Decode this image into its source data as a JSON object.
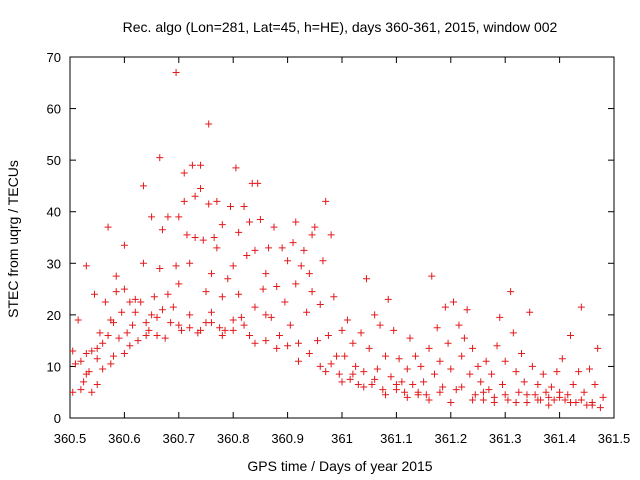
{
  "chart_data": {
    "type": "scatter",
    "title": "Rec. algo (Lon=281, Lat=45, h=HE), days 360-361, 2015, window 002",
    "xlabel": "GPS time / Days of year 2015",
    "ylabel": "STEC from uqrg / TECUs",
    "xlim": [
      360.5,
      361.5
    ],
    "ylim": [
      0,
      70
    ],
    "xticks": [
      "360.5",
      "360.6",
      "360.7",
      "360.8",
      "360.9",
      "361",
      "361.1",
      "361.2",
      "361.3",
      "361.4",
      "361.5"
    ],
    "yticks": [
      "0",
      "10",
      "20",
      "30",
      "40",
      "50",
      "60",
      "70"
    ],
    "grid": false,
    "marker": "+",
    "color": "#e31a1c",
    "points": [
      [
        360.505,
        13.0
      ],
      [
        360.505,
        5.0
      ],
      [
        360.51,
        10.5
      ],
      [
        360.515,
        19.0
      ],
      [
        360.52,
        11.0
      ],
      [
        360.52,
        5.5
      ],
      [
        360.525,
        7.0
      ],
      [
        360.53,
        12.5
      ],
      [
        360.53,
        29.5
      ],
      [
        360.535,
        9.0
      ],
      [
        360.54,
        5.0
      ],
      [
        360.54,
        13.0
      ],
      [
        360.545,
        24.0
      ],
      [
        360.55,
        6.5
      ],
      [
        360.55,
        11.5
      ],
      [
        360.555,
        16.5
      ],
      [
        360.56,
        9.5
      ],
      [
        360.56,
        14.5
      ],
      [
        360.565,
        22.5
      ],
      [
        360.57,
        16.0
      ],
      [
        360.57,
        37.0
      ],
      [
        360.575,
        10.5
      ],
      [
        360.58,
        12.0
      ],
      [
        360.58,
        18.5
      ],
      [
        360.585,
        27.5
      ],
      [
        360.585,
        24.5
      ],
      [
        360.59,
        15.5
      ],
      [
        360.595,
        20.5
      ],
      [
        360.6,
        12.5
      ],
      [
        360.6,
        33.5
      ],
      [
        360.605,
        16.5
      ],
      [
        360.61,
        22.5
      ],
      [
        360.61,
        14.0
      ],
      [
        360.615,
        18.0
      ],
      [
        360.62,
        23.0
      ],
      [
        360.625,
        15.0
      ],
      [
        360.63,
        22.5
      ],
      [
        360.635,
        45.0
      ],
      [
        360.635,
        30.0
      ],
      [
        360.64,
        18.5
      ],
      [
        360.645,
        17.0
      ],
      [
        360.65,
        39.0
      ],
      [
        360.65,
        20.0
      ],
      [
        360.655,
        23.5
      ],
      [
        360.66,
        16.0
      ],
      [
        360.665,
        50.5
      ],
      [
        360.665,
        29.0
      ],
      [
        360.67,
        36.5
      ],
      [
        360.67,
        21.0
      ],
      [
        360.675,
        15.5
      ],
      [
        360.68,
        39.0
      ],
      [
        360.685,
        18.5
      ],
      [
        360.69,
        21.5
      ],
      [
        360.695,
        67.0
      ],
      [
        360.695,
        29.5
      ],
      [
        360.7,
        39.0
      ],
      [
        360.7,
        26.0
      ],
      [
        360.705,
        17.0
      ],
      [
        360.71,
        47.5
      ],
      [
        360.71,
        42.0
      ],
      [
        360.715,
        35.5
      ],
      [
        360.72,
        30.0
      ],
      [
        360.72,
        20.0
      ],
      [
        360.725,
        49.0
      ],
      [
        360.73,
        43.0
      ],
      [
        360.73,
        35.0
      ],
      [
        360.735,
        16.5
      ],
      [
        360.74,
        49.0
      ],
      [
        360.74,
        44.5
      ],
      [
        360.745,
        34.5
      ],
      [
        360.75,
        24.5
      ],
      [
        360.75,
        18.5
      ],
      [
        360.755,
        57.0
      ],
      [
        360.755,
        41.5
      ],
      [
        360.76,
        28.0
      ],
      [
        360.76,
        20.5
      ],
      [
        360.765,
        35.0
      ],
      [
        360.77,
        42.0
      ],
      [
        360.77,
        33.0
      ],
      [
        360.775,
        17.5
      ],
      [
        360.78,
        23.5
      ],
      [
        360.78,
        37.5
      ],
      [
        360.785,
        17.0
      ],
      [
        360.79,
        27.0
      ],
      [
        360.795,
        41.0
      ],
      [
        360.8,
        29.5
      ],
      [
        360.8,
        19.0
      ],
      [
        360.805,
        48.5
      ],
      [
        360.81,
        36.0
      ],
      [
        360.81,
        24.0
      ],
      [
        360.815,
        19.5
      ],
      [
        360.82,
        41.0
      ],
      [
        360.825,
        31.5
      ],
      [
        360.83,
        38.0
      ],
      [
        360.83,
        16.0
      ],
      [
        360.835,
        45.5
      ],
      [
        360.84,
        32.5
      ],
      [
        360.84,
        21.5
      ],
      [
        360.845,
        45.5
      ],
      [
        360.85,
        38.5
      ],
      [
        360.855,
        25.0
      ],
      [
        360.86,
        28.0
      ],
      [
        360.86,
        20.0
      ],
      [
        360.865,
        33.0
      ],
      [
        360.87,
        19.5
      ],
      [
        360.875,
        37.0
      ],
      [
        360.88,
        25.5
      ],
      [
        360.885,
        16.0
      ],
      [
        360.89,
        33.0
      ],
      [
        360.895,
        22.5
      ],
      [
        360.9,
        30.5
      ],
      [
        360.905,
        18.0
      ],
      [
        360.91,
        34.0
      ],
      [
        360.915,
        38.0
      ],
      [
        360.915,
        26.0
      ],
      [
        360.92,
        14.5
      ],
      [
        360.925,
        29.5
      ],
      [
        360.93,
        32.5
      ],
      [
        360.935,
        20.5
      ],
      [
        360.94,
        28.0
      ],
      [
        360.945,
        35.5
      ],
      [
        360.945,
        24.5
      ],
      [
        360.95,
        37.0
      ],
      [
        360.955,
        15.0
      ],
      [
        360.96,
        22.0
      ],
      [
        360.965,
        30.5
      ],
      [
        360.97,
        42.0
      ],
      [
        360.97,
        9.0
      ],
      [
        360.975,
        16.0
      ],
      [
        360.98,
        35.5
      ],
      [
        360.985,
        23.5
      ],
      [
        360.99,
        12.0
      ],
      [
        360.995,
        8.5
      ],
      [
        361.0,
        17.0
      ],
      [
        361.005,
        12.0
      ],
      [
        361.01,
        19.0
      ],
      [
        361.015,
        7.5
      ],
      [
        361.02,
        14.5
      ],
      [
        361.025,
        10.0
      ],
      [
        361.03,
        6.5
      ],
      [
        361.035,
        16.5
      ],
      [
        361.04,
        9.0
      ],
      [
        361.045,
        27.0
      ],
      [
        361.05,
        13.5
      ],
      [
        361.055,
        6.5
      ],
      [
        361.06,
        20.0
      ],
      [
        361.065,
        9.5
      ],
      [
        361.07,
        18.0
      ],
      [
        361.075,
        5.5
      ],
      [
        361.08,
        12.0
      ],
      [
        361.085,
        23.0
      ],
      [
        361.09,
        8.0
      ],
      [
        361.095,
        17.0
      ],
      [
        361.1,
        5.5
      ],
      [
        361.105,
        11.5
      ],
      [
        361.11,
        7.0
      ],
      [
        361.115,
        5.0
      ],
      [
        361.12,
        9.5
      ],
      [
        361.125,
        15.5
      ],
      [
        361.13,
        6.5
      ],
      [
        361.135,
        12.0
      ],
      [
        361.14,
        5.0
      ],
      [
        361.145,
        10.0
      ],
      [
        361.15,
        7.0
      ],
      [
        361.155,
        4.5
      ],
      [
        361.16,
        13.5
      ],
      [
        361.165,
        27.5
      ],
      [
        361.17,
        8.5
      ],
      [
        361.175,
        17.5
      ],
      [
        361.18,
        11.0
      ],
      [
        361.185,
        6.0
      ],
      [
        361.19,
        21.5
      ],
      [
        361.195,
        14.5
      ],
      [
        361.2,
        9.5
      ],
      [
        361.205,
        22.5
      ],
      [
        361.21,
        5.5
      ],
      [
        361.215,
        18.0
      ],
      [
        361.22,
        12.0
      ],
      [
        361.225,
        15.5
      ],
      [
        361.23,
        21.0
      ],
      [
        361.235,
        8.5
      ],
      [
        361.24,
        13.5
      ],
      [
        361.245,
        4.5
      ],
      [
        361.25,
        10.0
      ],
      [
        361.255,
        7.0
      ],
      [
        361.26,
        3.5
      ],
      [
        361.265,
        11.0
      ],
      [
        361.27,
        5.5
      ],
      [
        361.275,
        8.5
      ],
      [
        361.28,
        4.0
      ],
      [
        361.285,
        14.0
      ],
      [
        361.29,
        19.5
      ],
      [
        361.295,
        6.5
      ],
      [
        361.3,
        11.0
      ],
      [
        361.305,
        3.5
      ],
      [
        361.31,
        24.5
      ],
      [
        361.315,
        16.5
      ],
      [
        361.32,
        9.0
      ],
      [
        361.325,
        5.0
      ],
      [
        361.33,
        12.5
      ],
      [
        361.335,
        7.0
      ],
      [
        361.34,
        3.0
      ],
      [
        361.345,
        20.5
      ],
      [
        361.35,
        10.0
      ],
      [
        361.355,
        4.5
      ],
      [
        361.36,
        6.5
      ],
      [
        361.365,
        3.5
      ],
      [
        361.37,
        8.5
      ],
      [
        361.375,
        5.0
      ],
      [
        361.38,
        4.0
      ],
      [
        361.385,
        6.0
      ],
      [
        361.39,
        3.5
      ],
      [
        361.395,
        9.0
      ],
      [
        361.4,
        5.0
      ],
      [
        361.405,
        11.5
      ],
      [
        361.41,
        3.5
      ],
      [
        361.415,
        4.5
      ],
      [
        361.42,
        16.0
      ],
      [
        361.425,
        6.5
      ],
      [
        361.43,
        3.0
      ],
      [
        361.435,
        9.0
      ],
      [
        361.44,
        21.5
      ],
      [
        361.445,
        5.0
      ],
      [
        361.45,
        2.5
      ],
      [
        361.455,
        9.5
      ],
      [
        361.46,
        3.0
      ],
      [
        361.465,
        6.5
      ],
      [
        361.47,
        13.5
      ],
      [
        361.475,
        2.0
      ],
      [
        361.48,
        4.0
      ],
      [
        360.53,
        8.5
      ],
      [
        360.55,
        13.5
      ],
      [
        360.575,
        19.0
      ],
      [
        360.6,
        25.0
      ],
      [
        360.62,
        20.5
      ],
      [
        360.64,
        16.0
      ],
      [
        360.66,
        19.5
      ],
      [
        360.68,
        24.0
      ],
      [
        360.7,
        18.0
      ],
      [
        360.72,
        17.5
      ],
      [
        360.74,
        17.0
      ],
      [
        360.76,
        18.5
      ],
      [
        360.78,
        16.0
      ],
      [
        360.8,
        17.0
      ],
      [
        360.82,
        18.0
      ],
      [
        360.84,
        14.5
      ],
      [
        360.86,
        15.0
      ],
      [
        360.88,
        13.5
      ],
      [
        360.9,
        14.0
      ],
      [
        360.92,
        11.0
      ],
      [
        360.94,
        12.5
      ],
      [
        360.96,
        10.0
      ],
      [
        360.98,
        10.5
      ],
      [
        361.0,
        7.0
      ],
      [
        361.02,
        8.5
      ],
      [
        361.04,
        6.0
      ],
      [
        361.06,
        7.5
      ],
      [
        361.08,
        4.5
      ],
      [
        361.1,
        6.5
      ],
      [
        361.12,
        4.0
      ],
      [
        361.14,
        4.5
      ],
      [
        361.16,
        3.5
      ],
      [
        361.18,
        5.0
      ],
      [
        361.2,
        3.0
      ],
      [
        361.22,
        6.0
      ],
      [
        361.24,
        3.5
      ],
      [
        361.26,
        5.0
      ],
      [
        361.28,
        3.0
      ],
      [
        361.3,
        4.5
      ],
      [
        361.32,
        3.0
      ],
      [
        361.34,
        4.5
      ],
      [
        361.36,
        3.5
      ],
      [
        361.38,
        2.5
      ],
      [
        361.4,
        4.0
      ],
      [
        361.42,
        3.0
      ],
      [
        361.44,
        3.5
      ],
      [
        361.46,
        2.5
      ]
    ]
  }
}
